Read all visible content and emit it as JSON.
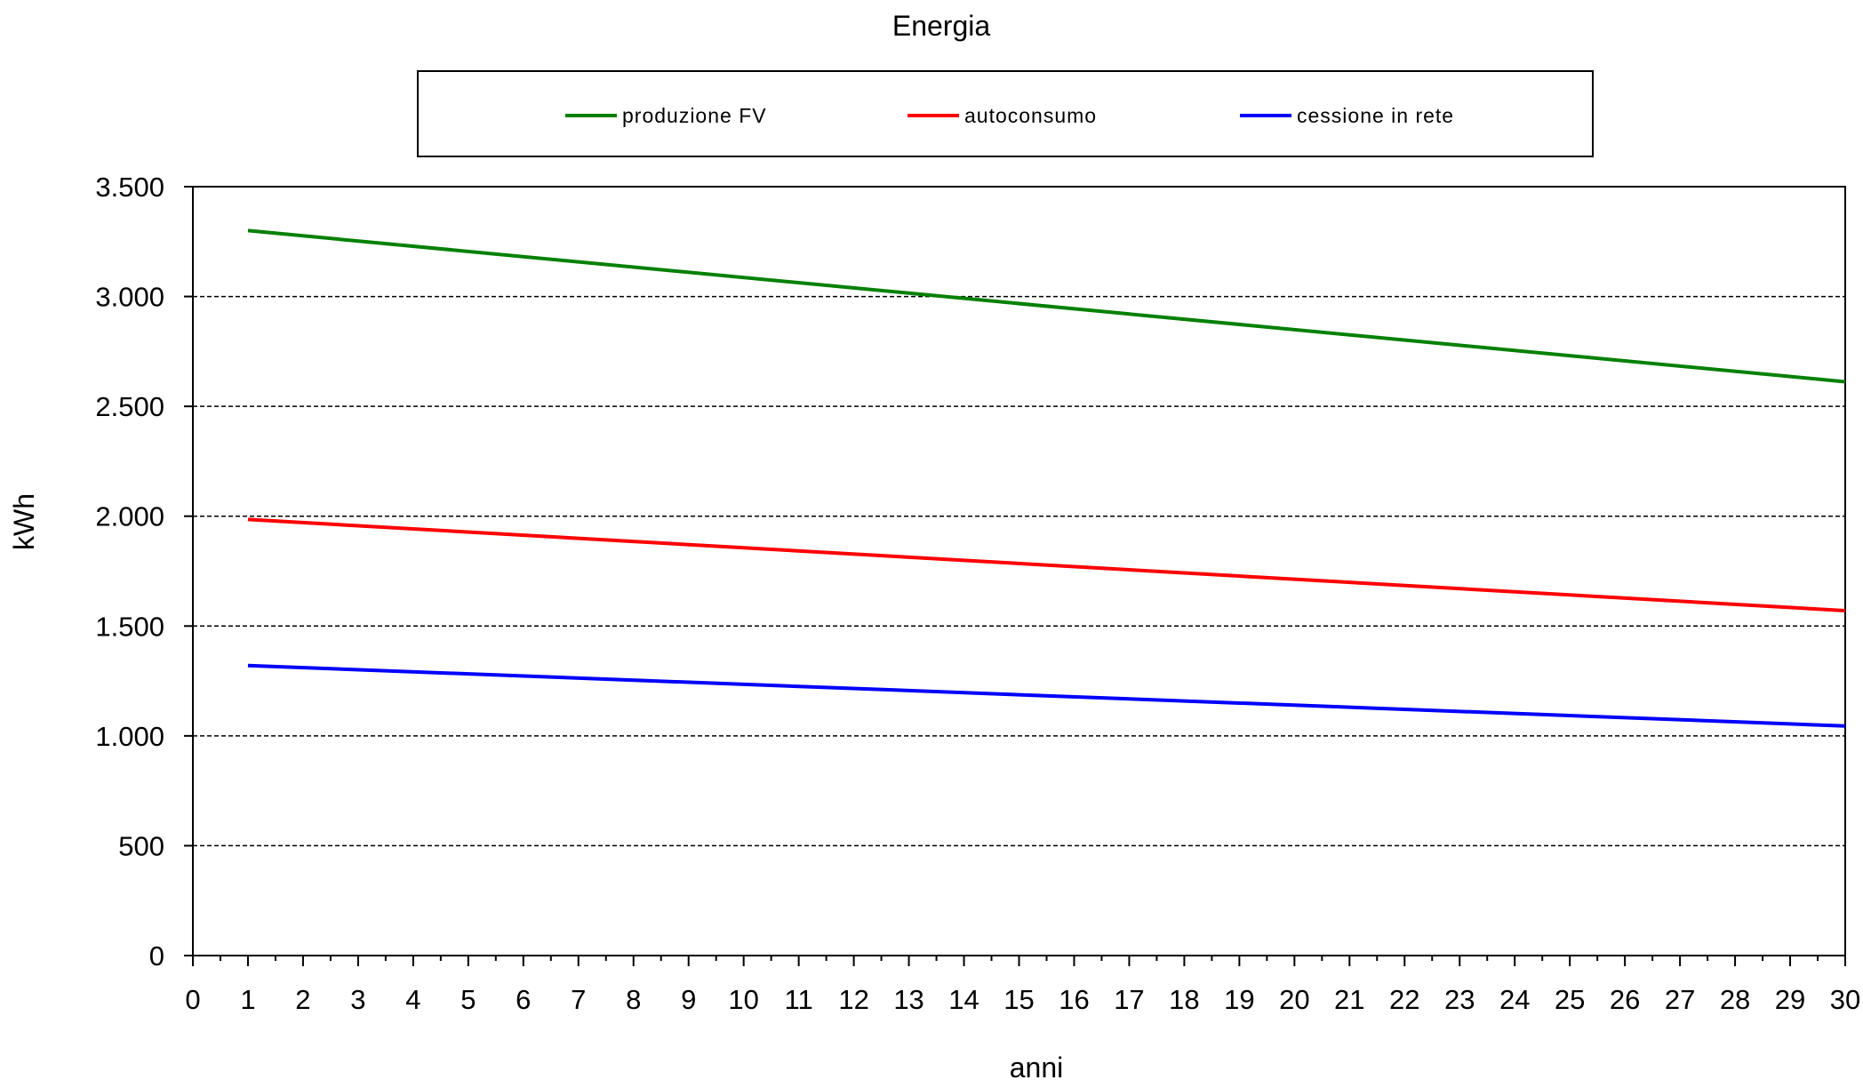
{
  "chart_data": {
    "type": "line",
    "title": "Energia",
    "xlabel": "anni",
    "ylabel": "kWh",
    "xlim": [
      0,
      30
    ],
    "ylim": [
      0,
      3500
    ],
    "x_ticks": [
      "0",
      "1",
      "2",
      "3",
      "4",
      "5",
      "6",
      "7",
      "8",
      "9",
      "10",
      "11",
      "12",
      "13",
      "14",
      "15",
      "16",
      "17",
      "18",
      "19",
      "20",
      "21",
      "22",
      "23",
      "24",
      "25",
      "26",
      "27",
      "28",
      "29",
      "30"
    ],
    "y_ticks": [
      {
        "value": 0,
        "label": "0"
      },
      {
        "value": 500,
        "label": "500"
      },
      {
        "value": 1000,
        "label": "1.000"
      },
      {
        "value": 1500,
        "label": "1.500"
      },
      {
        "value": 2000,
        "label": "2.000"
      },
      {
        "value": 2500,
        "label": "2.500"
      },
      {
        "value": 3000,
        "label": "3.000"
      },
      {
        "value": 3500,
        "label": "3.500"
      }
    ],
    "grid": "horizontal dashed",
    "legend_position": "top",
    "series": [
      {
        "name": "produzione FV",
        "color": "#008000",
        "x": [
          1,
          30
        ],
        "values": [
          3300,
          2612
        ]
      },
      {
        "name": "autoconsumo",
        "color": "#ff0000",
        "x": [
          1,
          30
        ],
        "values": [
          1985,
          1570
        ]
      },
      {
        "name": "cessione in rete",
        "color": "#0000ff",
        "x": [
          1,
          30
        ],
        "values": [
          1320,
          1045
        ]
      }
    ]
  }
}
